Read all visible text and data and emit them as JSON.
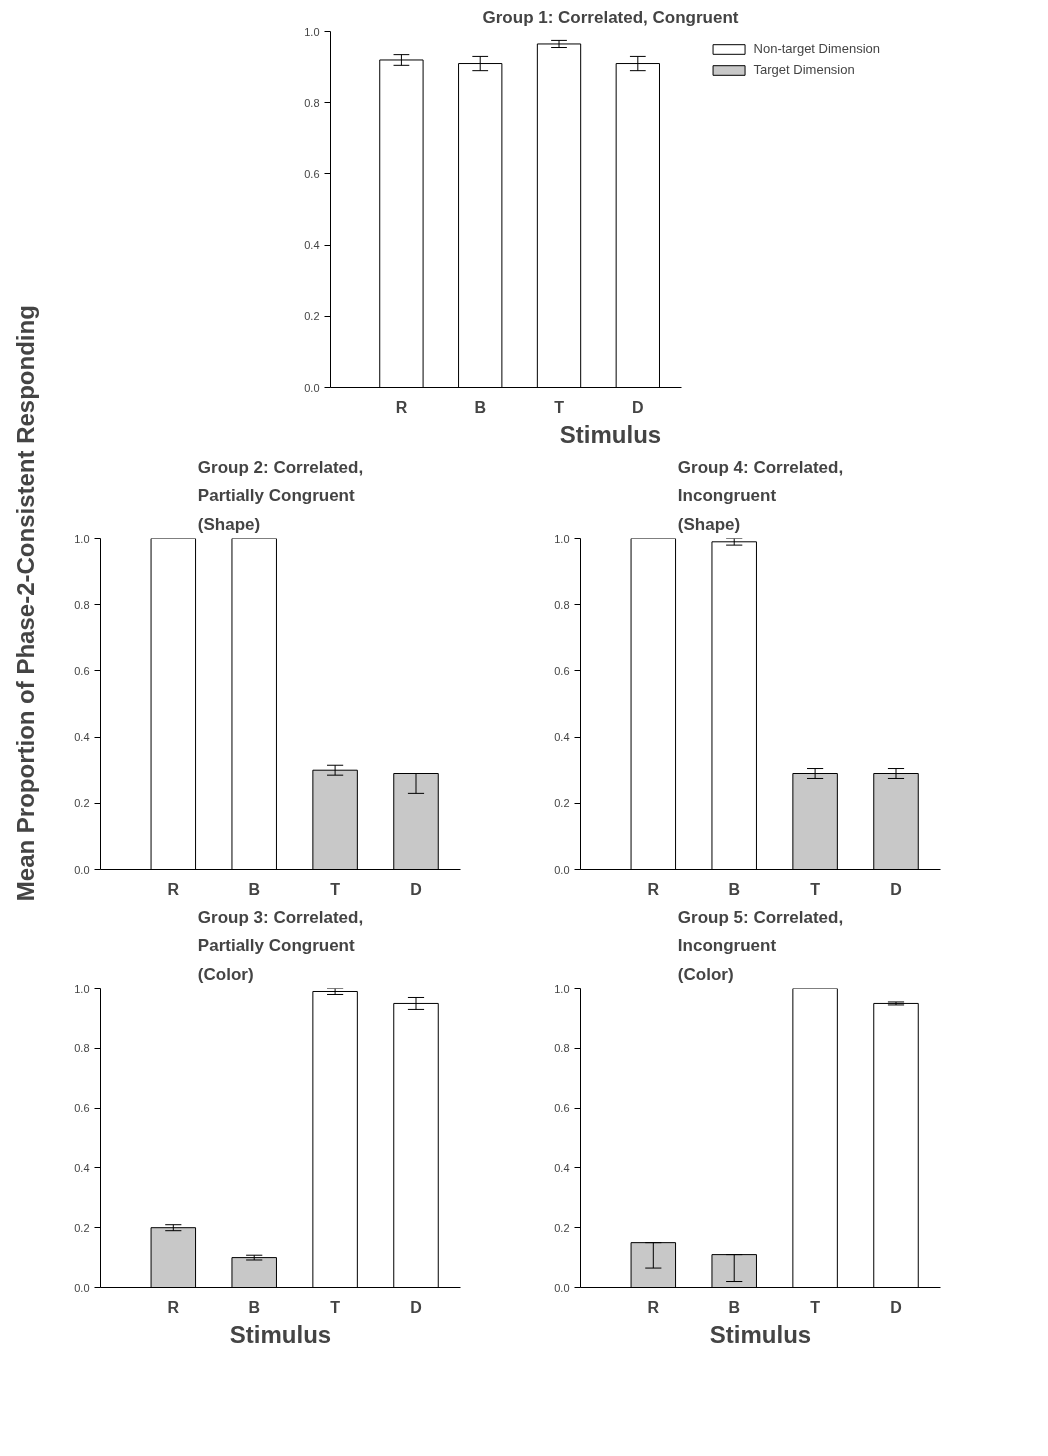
{
  "chart_data": [
    {
      "type": "bar",
      "title": "Group 1: Correlated, Congruent",
      "xlabel": "Stimulus",
      "categories": [
        "R",
        "B",
        "T",
        "D"
      ],
      "ylim": [
        0,
        1.0
      ],
      "yticks": [
        {
          "value": 0,
          "label": "0.0"
        },
        {
          "value": 0.2,
          "label": "0.2"
        },
        {
          "value": 0.4,
          "label": "0.4"
        },
        {
          "value": 0.6,
          "label": "0.6"
        },
        {
          "value": 0.8,
          "label": "0.8"
        },
        {
          "value": 1.0,
          "label": "1.0"
        }
      ],
      "legend": "right",
      "grid": false,
      "series": [
        {
          "name": "Non-target Dimension",
          "color": "#ffffff",
          "values": [
            0.92,
            0.91,
            0.965,
            0.91
          ],
          "errors": [
            0.015,
            0.02,
            0.01,
            0.02
          ]
        },
        {
          "name": "Target Dimension",
          "color": "#c8c8c8",
          "values": [
            null,
            null,
            null,
            null
          ]
        }
      ]
    },
    {
      "type": "bar",
      "title": "Group 2: Correlated, Partially Congruent (Shape)",
      "ylabel": "Mean Proportion of Phase-2-Consistent Responding",
      "categories": [
        "R",
        "B",
        "T",
        "D"
      ],
      "ylim": [
        0,
        1.0
      ],
      "yticks": [
        {
          "value": 0,
          "label": "0.0"
        },
        {
          "value": 0.2,
          "label": "0.2"
        },
        {
          "value": 0.4,
          "label": "0.4"
        },
        {
          "value": 0.6,
          "label": "0.6"
        },
        {
          "value": 0.8,
          "label": "0.8"
        },
        {
          "value": 1.0,
          "label": "1.0"
        }
      ],
      "grid": false,
      "series": [
        {
          "color": "#ffffff",
          "values": [
            1.0,
            1.0,
            null,
            null
          ]
        },
        {
          "color": "#c8c8c8",
          "values": [
            null,
            null,
            0.3,
            0.29
          ],
          "errors": [
            null,
            null,
            0.015,
            [
              0.23,
              0.29
            ]
          ]
        }
      ]
    },
    {
      "type": "bar",
      "title": "Group 4: Correlated, Incongruent (Shape)",
      "categories": [
        "R",
        "B",
        "T",
        "D"
      ],
      "ylim": [
        0,
        1.0
      ],
      "yticks": [
        {
          "value": 0,
          "label": "0.0"
        },
        {
          "value": 0.2,
          "label": "0.2"
        },
        {
          "value": 0.4,
          "label": "0.4"
        },
        {
          "value": 0.6,
          "label": "0.6"
        },
        {
          "value": 0.8,
          "label": "0.8"
        },
        {
          "value": 1.0,
          "label": "1.0"
        }
      ],
      "grid": false,
      "series": [
        {
          "color": "#ffffff",
          "values": [
            1.0,
            0.99,
            null,
            null
          ],
          "errors": [
            null,
            0.01,
            null,
            null
          ]
        },
        {
          "color": "#c8c8c8",
          "values": [
            null,
            null,
            0.29,
            0.29
          ],
          "errors": [
            null,
            null,
            0.015,
            0.015
          ]
        }
      ]
    },
    {
      "type": "bar",
      "title": "Group 3: Correlated, Partially Congruent (Color)",
      "xlabel": "Stimulus",
      "categories": [
        "R",
        "B",
        "T",
        "D"
      ],
      "ylim": [
        0,
        1.0
      ],
      "yticks": [
        {
          "value": 0,
          "label": "0.0"
        },
        {
          "value": 0.2,
          "label": "0.2"
        },
        {
          "value": 0.4,
          "label": "0.4"
        },
        {
          "value": 0.6,
          "label": "0.6"
        },
        {
          "value": 0.8,
          "label": "0.8"
        },
        {
          "value": 1.0,
          "label": "1.0"
        }
      ],
      "grid": false,
      "series": [
        {
          "color": "#ffffff",
          "values": [
            null,
            null,
            0.99,
            0.95
          ],
          "errors": [
            null,
            null,
            0.01,
            0.02
          ]
        },
        {
          "color": "#c8c8c8",
          "values": [
            0.2,
            0.1,
            null,
            null
          ],
          "errors": [
            0.01,
            0.008,
            null,
            null
          ]
        }
      ]
    },
    {
      "type": "bar",
      "title": "Group 5: Correlated, Incongruent (Color)",
      "xlabel": "Stimulus",
      "categories": [
        "R",
        "B",
        "T",
        "D"
      ],
      "ylim": [
        0,
        1.0
      ],
      "yticks": [
        {
          "value": 0,
          "label": "0.0"
        },
        {
          "value": 0.2,
          "label": "0.2"
        },
        {
          "value": 0.4,
          "label": "0.4"
        },
        {
          "value": 0.6,
          "label": "0.6"
        },
        {
          "value": 0.8,
          "label": "0.8"
        },
        {
          "value": 1.0,
          "label": "1.0"
        }
      ],
      "grid": false,
      "series": [
        {
          "color": "#ffffff",
          "values": [
            null,
            null,
            1.0,
            0.95
          ],
          "errors": [
            null,
            null,
            null,
            0.005
          ]
        },
        {
          "color": "#c8c8c8",
          "values": [
            0.15,
            0.11,
            null,
            null
          ],
          "errors": [
            [
              0.065,
              0.15
            ],
            [
              0.02,
              0.11
            ],
            null,
            null
          ]
        }
      ]
    }
  ]
}
